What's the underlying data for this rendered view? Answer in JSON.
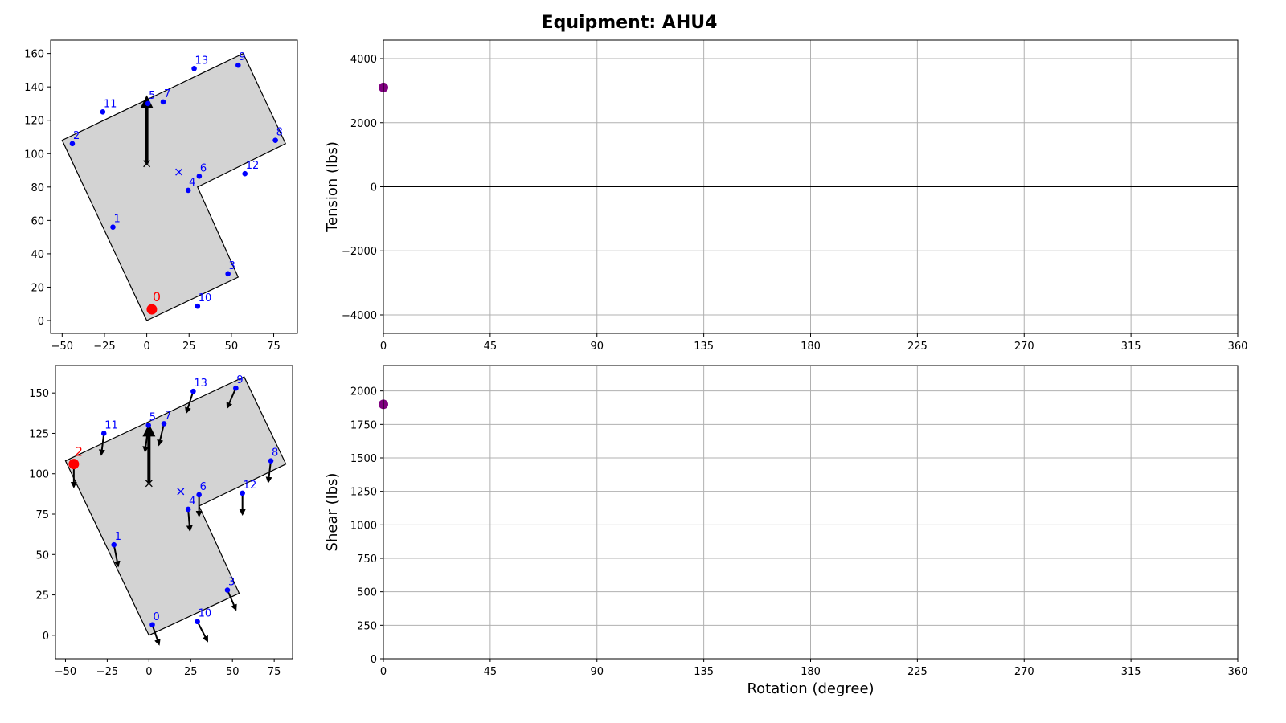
{
  "title": "Equipment: AHU4",
  "chart_data": [
    {
      "type": "plan",
      "xlim": [
        -56.8,
        89
      ],
      "ylim": [
        -7.7,
        168
      ],
      "xticks": [
        {
          "value": -50,
          "label": "−50"
        },
        {
          "value": -25,
          "label": "−25"
        },
        0,
        25,
        50,
        75
      ],
      "yticks": [
        0,
        20,
        40,
        60,
        80,
        100,
        120,
        140,
        160
      ],
      "outline": {
        "x": [
          0,
          54,
          30,
          82,
          57,
          3.5,
          -50
        ],
        "y": [
          0,
          26,
          80,
          106,
          160,
          134,
          108
        ]
      },
      "fill": "#d3d3d3",
      "centroid": {
        "x": 19,
        "y": 89
      },
      "arrow": {
        "x": [
          0,
          0
        ],
        "y": [
          94,
          135
        ]
      },
      "x": [
        3,
        -20,
        -44,
        48,
        24.5,
        0.7,
        31,
        9.7,
        76,
        54,
        30,
        -26,
        58,
        28
      ],
      "y": [
        6.7,
        56,
        106,
        28,
        78,
        130,
        86.5,
        131,
        108,
        153,
        8.6,
        125,
        88,
        151
      ],
      "point_labels": [
        "0",
        "1",
        "2",
        "3",
        "4",
        "5",
        "6",
        "7",
        "8",
        "9",
        "10",
        "11",
        "12",
        "13"
      ],
      "color": "#0000ff",
      "highlight": {
        "index": 0,
        "color": "#ff0000"
      }
    },
    {
      "type": "plan",
      "xlim": [
        -56,
        86
      ],
      "ylim": [
        -14.5,
        167
      ],
      "xticks": [
        {
          "value": -50,
          "label": "−50"
        },
        {
          "value": -25,
          "label": "−25"
        },
        0,
        25,
        50,
        75
      ],
      "yticks": [
        0,
        25,
        50,
        75,
        100,
        125,
        150
      ],
      "outline": {
        "x": [
          0,
          54,
          30,
          82,
          57,
          3.5,
          -50
        ],
        "y": [
          0,
          26,
          80,
          106,
          160,
          134,
          108
        ]
      },
      "fill": "#d3d3d3",
      "centroid": {
        "x": 19,
        "y": 89
      },
      "arrow": {
        "x": [
          0,
          0
        ],
        "y": [
          94,
          131
        ]
      },
      "x": [
        2,
        -21,
        -45,
        47,
        23.5,
        -0.3,
        30,
        9,
        73,
        52,
        29,
        -27,
        56,
        26.5
      ],
      "y": [
        6.5,
        56,
        106,
        28,
        78,
        130,
        87,
        131,
        108,
        153,
        8.5,
        125,
        88,
        151
      ],
      "vectors": {
        "dx": [
          4,
          2.5,
          0,
          5,
          1,
          -2,
          0,
          -3,
          -1.5,
          -5,
          6,
          -1.5,
          0,
          -4
        ],
        "dy": [
          -12,
          -13,
          -14,
          -12,
          -13,
          -16,
          -13,
          -13,
          -13,
          -12,
          -12,
          -13,
          -13,
          -13
        ]
      },
      "point_labels": [
        "0",
        "1",
        "2",
        "3",
        "4",
        "5",
        "6",
        "7",
        "8",
        "9",
        "10",
        "11",
        "12",
        "13"
      ],
      "color": "#0000ff",
      "highlight": {
        "index": 2,
        "color": "#ff0000"
      }
    },
    {
      "type": "line",
      "ylabel": "Tension (lbs)",
      "xlim": [
        0,
        360
      ],
      "ylim": [
        -4577,
        4577
      ],
      "xticks": [
        0,
        45,
        90,
        135,
        180,
        225,
        270,
        315,
        360
      ],
      "yticks": [
        {
          "value": -4000,
          "label": "−4000"
        },
        {
          "value": -2000,
          "label": "−2000"
        },
        0,
        2000,
        4000
      ],
      "x": [
        0
      ],
      "values": [
        3100
      ],
      "color": "#800080",
      "grid": true,
      "hline": 0
    },
    {
      "type": "line",
      "ylabel": "Shear (lbs)",
      "xlabel": "Rotation (degree)",
      "xlim": [
        0,
        360
      ],
      "ylim": [
        0,
        2190
      ],
      "xticks": [
        0,
        45,
        90,
        135,
        180,
        225,
        270,
        315,
        360
      ],
      "yticks": [
        0,
        250,
        500,
        750,
        1000,
        1250,
        1500,
        1750,
        2000
      ],
      "x": [
        0
      ],
      "values": [
        1900
      ],
      "color": "#800080",
      "grid": true
    }
  ]
}
